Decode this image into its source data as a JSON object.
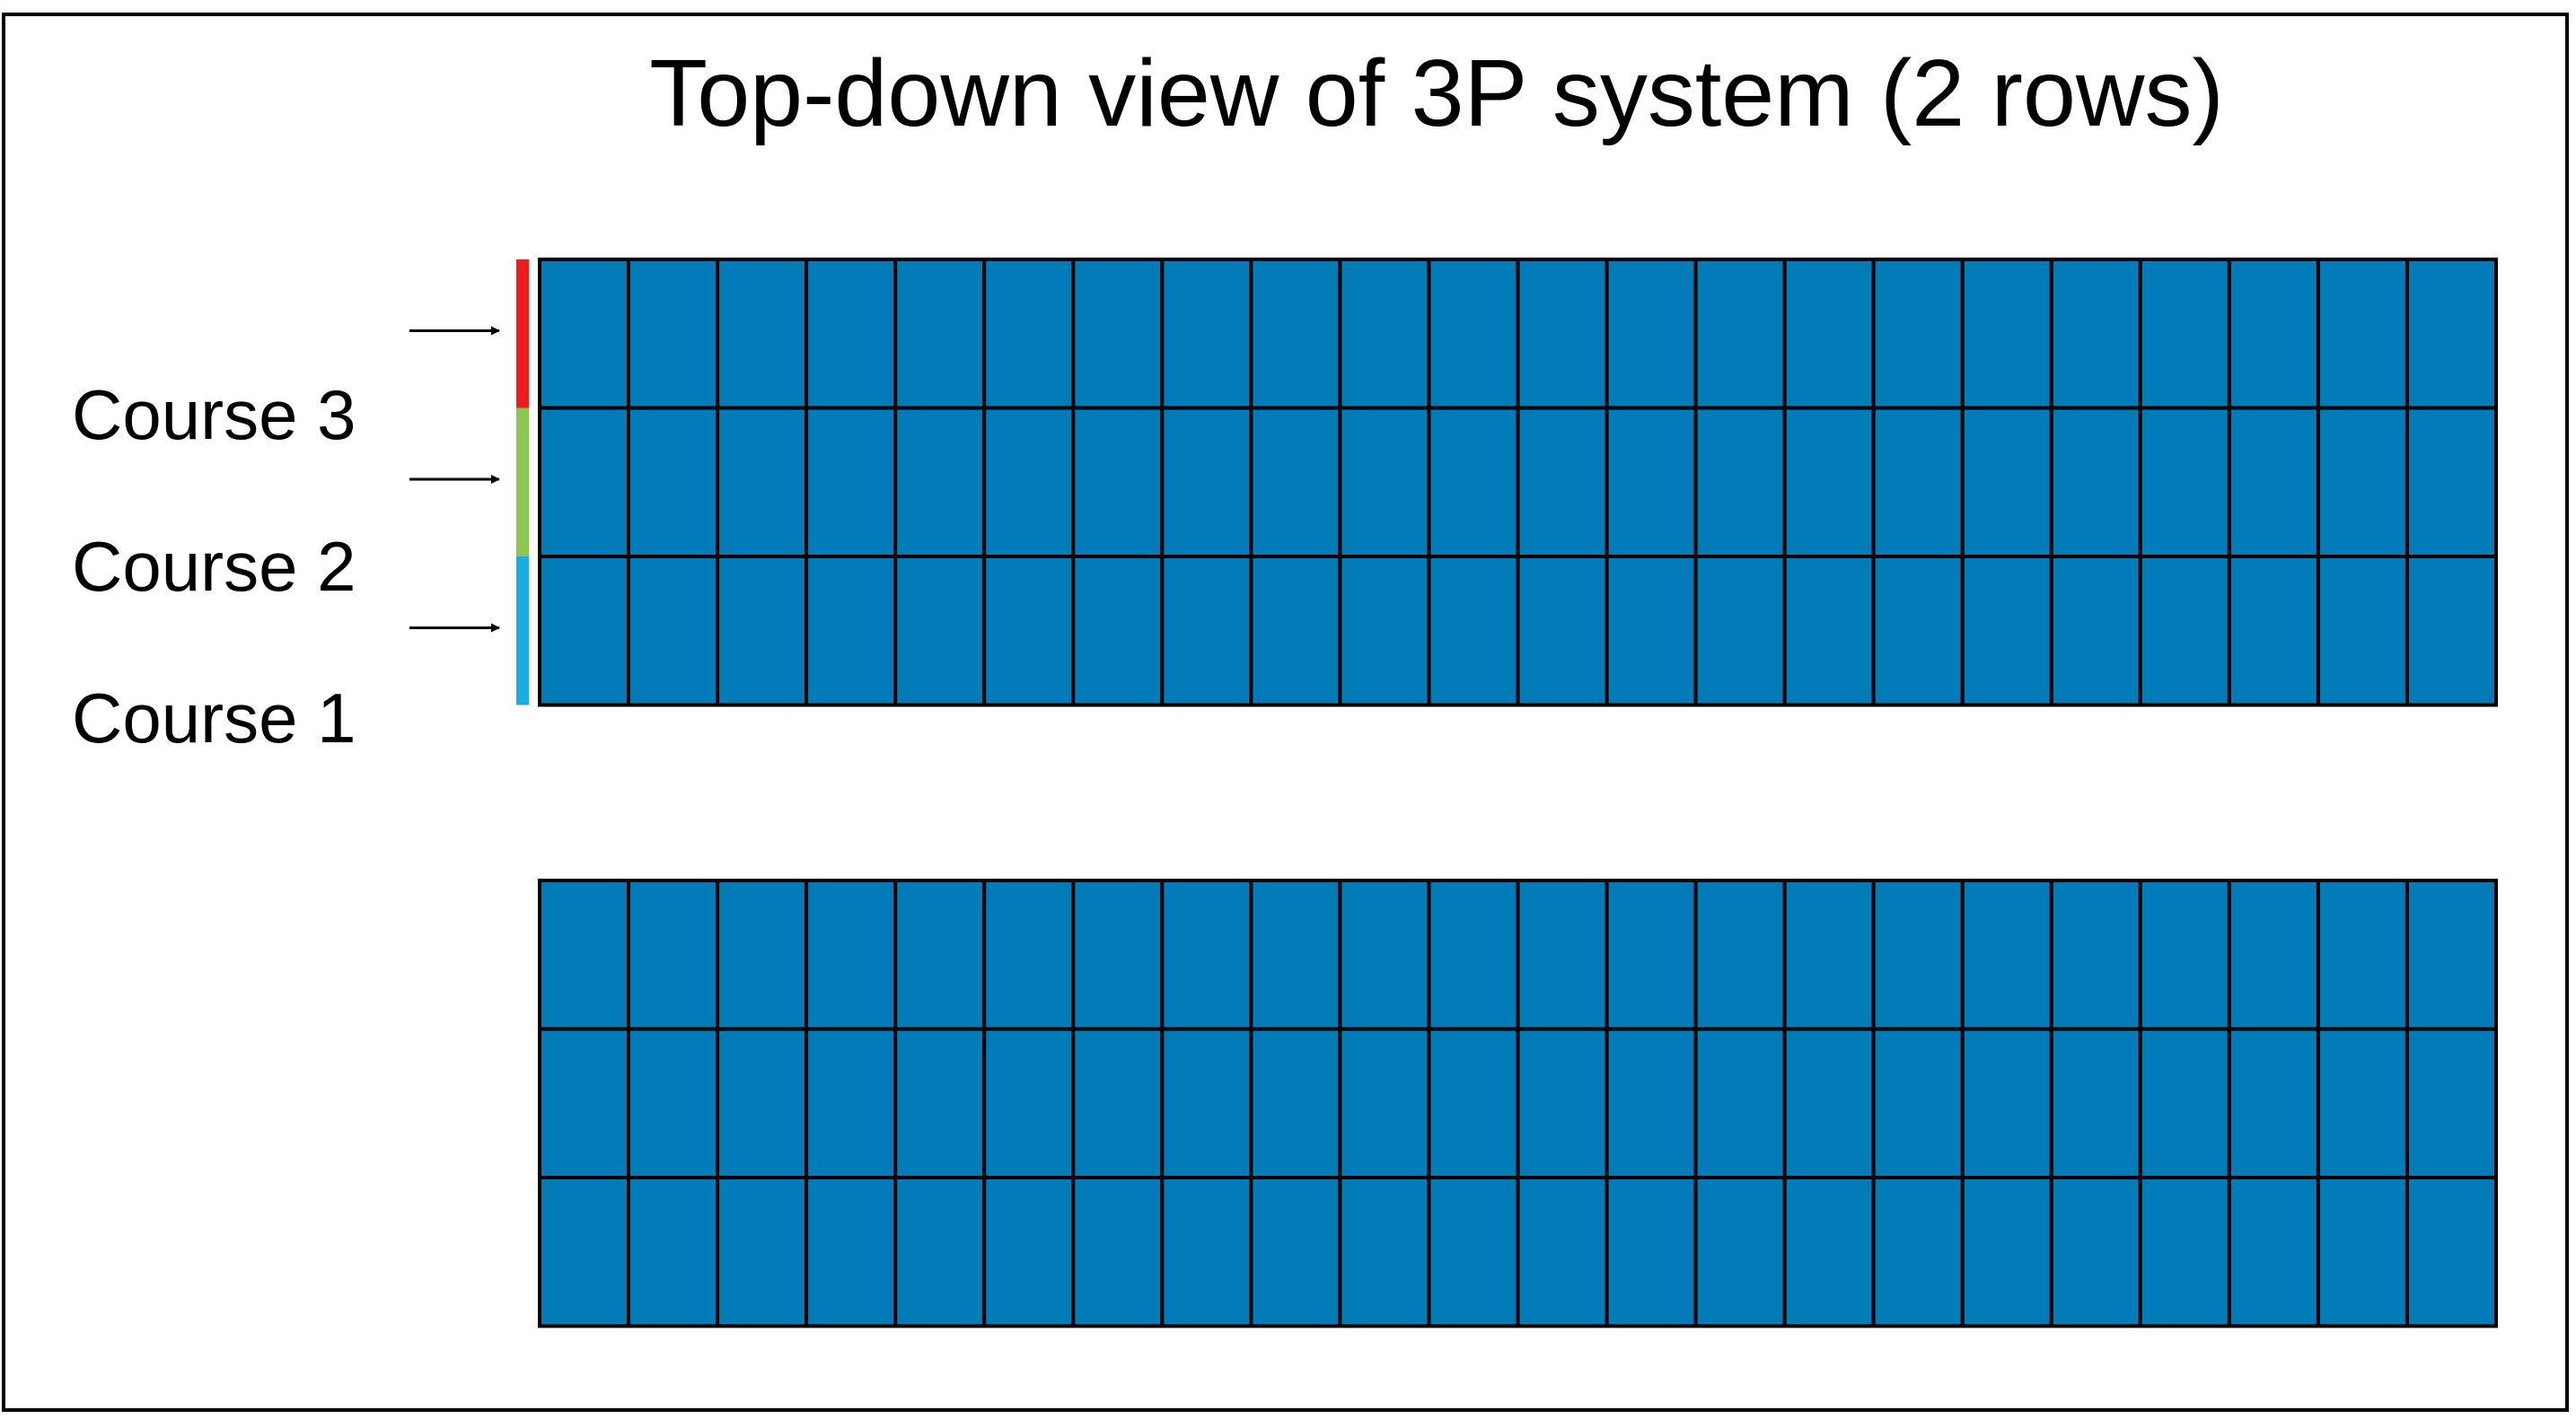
{
  "title": "Top-down view of 3P system (2 rows)",
  "courses": [
    {
      "label": "Course 3",
      "color": "#ee1c1c"
    },
    {
      "label": "Course 2",
      "color": "#8dc653"
    },
    {
      "label": "Course 1",
      "color": "#19aee3"
    }
  ],
  "system": {
    "rows": 2,
    "modules_per_row": 22,
    "courses_per_row": 3,
    "module_color": "#027cb9",
    "outline_color": "#000000"
  }
}
